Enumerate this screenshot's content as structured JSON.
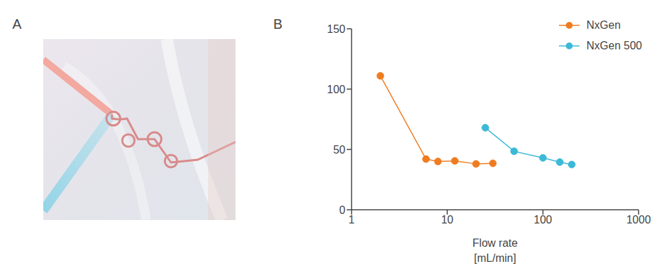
{
  "panel_A": {
    "label": "A"
  },
  "chart_data": {
    "panel_label": "B",
    "type": "line",
    "x_label": "Flow rate [mL/min]",
    "log": "x",
    "xlim": [
      1,
      1000
    ],
    "xticks": [
      1,
      10,
      100,
      1000
    ],
    "ylim": [
      0,
      150
    ],
    "yticks": [
      0,
      50,
      100,
      150
    ],
    "grid": false,
    "legend": "top right",
    "series": [
      {
        "name": "NxGen",
        "color": "#f07c22",
        "marker": "circle",
        "x": [
          2,
          6,
          8,
          12,
          20,
          30
        ],
        "values": [
          111,
          42,
          40,
          40.5,
          38,
          38.5
        ]
      },
      {
        "name": "NxGen 500",
        "color": "#3cb9d6",
        "marker": "circle",
        "x": [
          25,
          50,
          100,
          150,
          200
        ],
        "values": [
          68,
          48.5,
          43,
          39.5,
          37.5
        ]
      }
    ]
  }
}
